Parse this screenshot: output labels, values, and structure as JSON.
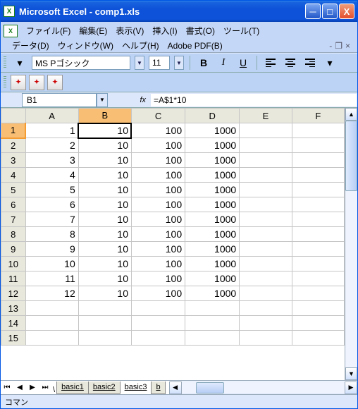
{
  "title": "Microsoft Excel - comp1.xls",
  "menu": {
    "file": "ファイル(F)",
    "edit": "編集(E)",
    "view": "表示(V)",
    "insert": "挿入(I)",
    "format": "書式(O)",
    "tools": "ツール(T)",
    "data": "データ(D)",
    "window": "ウィンドウ(W)",
    "help": "ヘルプ(H)",
    "pdf": "Adobe PDF(B)"
  },
  "toolbar": {
    "font": "MS Pゴシック",
    "size": "11"
  },
  "formula": {
    "cell": "B1",
    "fx": "fx",
    "value": "=A$1*10"
  },
  "columns": [
    "A",
    "B",
    "C",
    "D",
    "E",
    "F"
  ],
  "selected_col": "B",
  "selected_row": 1,
  "active_cell": {
    "row": 1,
    "col": 1
  },
  "rows": [
    [
      1,
      10,
      100,
      1000,
      "",
      ""
    ],
    [
      2,
      10,
      100,
      1000,
      "",
      ""
    ],
    [
      3,
      10,
      100,
      1000,
      "",
      ""
    ],
    [
      4,
      10,
      100,
      1000,
      "",
      ""
    ],
    [
      5,
      10,
      100,
      1000,
      "",
      ""
    ],
    [
      6,
      10,
      100,
      1000,
      "",
      ""
    ],
    [
      7,
      10,
      100,
      1000,
      "",
      ""
    ],
    [
      8,
      10,
      100,
      1000,
      "",
      ""
    ],
    [
      9,
      10,
      100,
      1000,
      "",
      ""
    ],
    [
      10,
      10,
      100,
      1000,
      "",
      ""
    ],
    [
      11,
      10,
      100,
      1000,
      "",
      ""
    ],
    [
      12,
      10,
      100,
      1000,
      "",
      ""
    ],
    [
      "",
      "",
      "",
      "",
      "",
      ""
    ],
    [
      "",
      "",
      "",
      "",
      "",
      ""
    ],
    [
      "",
      "",
      "",
      "",
      "",
      ""
    ]
  ],
  "tabs": {
    "t1": "basic1",
    "t2": "basic2",
    "t3": "basic3",
    "t4": "b"
  },
  "status": "コマン",
  "colors": {
    "title_bg": "#0d52d8",
    "menu_bg": "#c5d7f7",
    "tool_bg": "#bcd3f5",
    "sel_header": "#f8bf74",
    "grid_border": "#c5c5c5",
    "header_bg": "#e9e8dd"
  }
}
